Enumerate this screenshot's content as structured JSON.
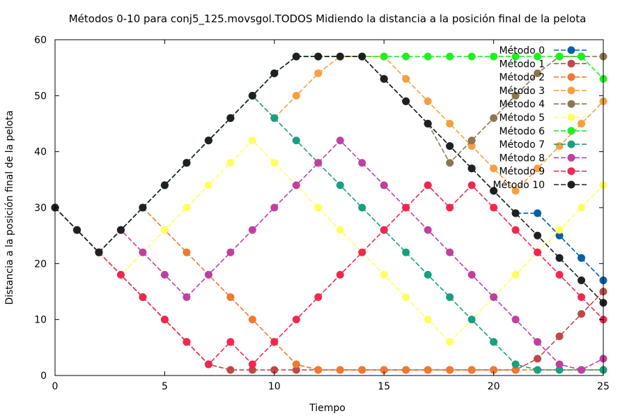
{
  "chart_data": {
    "type": "line",
    "title": "Métodos 0-10 para conj5_125.movsgol.TODOS Midiendo la distancia a la posición final de la pelota",
    "xlabel": "Tiempo",
    "ylabel": "Distancia a la posición final de la pelota",
    "xlim": [
      0,
      25
    ],
    "ylim": [
      0,
      60
    ],
    "x_ticks": [
      "0",
      "5",
      "10",
      "15",
      "20",
      "25"
    ],
    "y_ticks": [
      "0",
      "10",
      "20",
      "30",
      "40",
      "50",
      "60"
    ],
    "grid": false,
    "legend_position": "top-right",
    "x": [
      0,
      1,
      2,
      3,
      4,
      5,
      6,
      7,
      8,
      9,
      10,
      11,
      12,
      13,
      14,
      15,
      16,
      17,
      18,
      19,
      20,
      21,
      22,
      23,
      24,
      25
    ],
    "series": [
      {
        "name": "Método 0",
        "color": "#0060ad",
        "values": [
          30,
          26,
          22,
          26,
          30,
          34,
          38,
          42,
          46,
          50,
          54,
          57,
          57,
          57,
          57,
          53,
          49,
          45,
          41,
          37,
          33,
          29,
          29,
          25,
          21,
          17
        ]
      },
      {
        "name": "Método 1",
        "color": "#c04848",
        "values": [
          30,
          26,
          22,
          18,
          14,
          10,
          6,
          2,
          1,
          1,
          1,
          1,
          1,
          1,
          1,
          1,
          1,
          1,
          1,
          1,
          1,
          1,
          3,
          7,
          11,
          15
        ]
      },
      {
        "name": "Método 2",
        "color": "#f07830",
        "values": [
          30,
          26,
          22,
          26,
          30,
          26,
          22,
          18,
          14,
          10,
          6,
          2,
          1,
          1,
          1,
          1,
          1,
          1,
          1,
          1,
          1,
          1,
          1,
          1,
          1,
          1
        ]
      },
      {
        "name": "Método 3",
        "color": "#f4a040",
        "values": [
          30,
          26,
          22,
          26,
          30,
          34,
          38,
          42,
          46,
          50,
          46,
          50,
          54,
          57,
          57,
          57,
          53,
          49,
          45,
          41,
          37,
          33,
          37,
          41,
          45,
          49
        ]
      },
      {
        "name": "Método 4",
        "color": "#8c7850",
        "values": [
          30,
          26,
          22,
          26,
          30,
          34,
          38,
          42,
          46,
          50,
          54,
          57,
          57,
          57,
          57,
          53,
          49,
          45,
          38,
          42,
          46,
          50,
          54,
          57,
          57,
          57
        ]
      },
      {
        "name": "Método 5",
        "color": "#ffff60",
        "values": [
          30,
          26,
          22,
          18,
          22,
          26,
          30,
          34,
          38,
          42,
          38,
          34,
          30,
          26,
          22,
          18,
          14,
          10,
          6,
          10,
          14,
          18,
          22,
          26,
          30,
          34
        ]
      },
      {
        "name": "Método 6",
        "color": "#20f020",
        "values": [
          30,
          26,
          22,
          26,
          30,
          34,
          38,
          42,
          46,
          50,
          54,
          57,
          57,
          57,
          57,
          57,
          57,
          57,
          57,
          57,
          57,
          57,
          57,
          57,
          57,
          53
        ]
      },
      {
        "name": "Método 7",
        "color": "#18a080",
        "values": [
          30,
          26,
          22,
          26,
          30,
          34,
          38,
          42,
          46,
          50,
          46,
          42,
          38,
          34,
          30,
          26,
          22,
          18,
          14,
          10,
          6,
          2,
          1,
          1,
          1,
          1
        ]
      },
      {
        "name": "Método 8",
        "color": "#c040a0",
        "values": [
          30,
          26,
          22,
          26,
          22,
          18,
          14,
          18,
          22,
          26,
          30,
          34,
          38,
          42,
          38,
          34,
          30,
          26,
          22,
          18,
          14,
          10,
          6,
          2,
          1,
          3
        ]
      },
      {
        "name": "Método 9",
        "color": "#f02850",
        "values": [
          30,
          26,
          22,
          18,
          14,
          10,
          6,
          2,
          6,
          2,
          6,
          10,
          14,
          18,
          22,
          26,
          30,
          34,
          30,
          34,
          30,
          26,
          22,
          18,
          14,
          10
        ]
      },
      {
        "name": "Método 10",
        "color": "#202020",
        "values": [
          30,
          26,
          22,
          26,
          30,
          34,
          38,
          42,
          46,
          50,
          54,
          57,
          57,
          57,
          57,
          53,
          49,
          45,
          41,
          37,
          33,
          29,
          25,
          21,
          17,
          13
        ]
      }
    ]
  }
}
